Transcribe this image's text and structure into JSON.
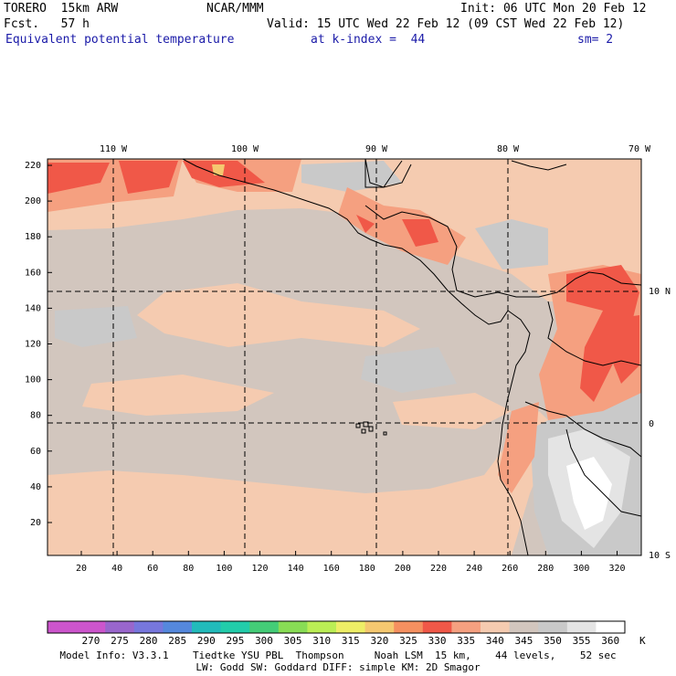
{
  "header": {
    "model": "TORERO  15km ARW",
    "center": "NCAR/MMM",
    "init": "Init: 06 UTC Mon 20 Feb 12",
    "fcst": "Fcst.   57 h",
    "valid": "Valid: 15 UTC Wed 22 Feb 12 (09 CST Wed 22 Feb 12)",
    "field": "Equivalent potential temperature",
    "level": "at k-index =  44",
    "smooth": "sm= 2"
  },
  "axes": {
    "top_lon": [
      "110 W",
      "100 W",
      "90 W",
      "80 W",
      "70 W"
    ],
    "right_lat": [
      "10 N",
      "0",
      "10 S"
    ],
    "left_y": [
      "220",
      "200",
      "180",
      "160",
      "140",
      "120",
      "100",
      "80",
      "60",
      "40",
      "20"
    ],
    "bottom_x": [
      "20",
      "40",
      "60",
      "80",
      "100",
      "120",
      "140",
      "160",
      "180",
      "200",
      "220",
      "240",
      "260",
      "280",
      "300",
      "320"
    ]
  },
  "colorbar": {
    "labels": [
      "270",
      "275",
      "280",
      "285",
      "290",
      "295",
      "300",
      "305",
      "310",
      "315",
      "320",
      "325",
      "330",
      "335",
      "340",
      "345",
      "350",
      "355",
      "360"
    ],
    "unit": "K",
    "colors": [
      "#cc55cc",
      "#9966cc",
      "#7777dd",
      "#5588dd",
      "#22bbbb",
      "#22ccaa",
      "#44cc77",
      "#88dd55",
      "#bbee55",
      "#eeee66",
      "#f5c870",
      "#f59060",
      "#f05848",
      "#f5a080",
      "#f5cbb0",
      "#d2c6be",
      "#c9c9c9",
      "#e4e4e4",
      "#ffffff"
    ]
  },
  "field_colors": {
    "c330": "#f05848",
    "c335": "#f5a080",
    "c340": "#f5cbb0",
    "c345": "#d2c6be",
    "c350": "#c9c9c9",
    "c355": "#e4e4e4",
    "c360": "#ffffff"
  },
  "footer": {
    "line1": "Model Info: V3.3.1    Tiedtke YSU PBL  Thompson     Noah LSM  15 km,    44 levels,    52 sec",
    "line2": "LW: Godd SW: Goddard DIFF: simple KM: 2D Smagor"
  }
}
